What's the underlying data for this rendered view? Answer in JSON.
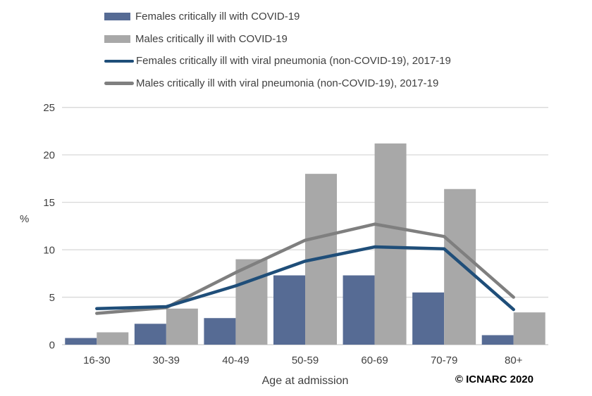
{
  "chart_data": {
    "type": "combo (bar + line)",
    "categories": [
      "16-30",
      "30-39",
      "40-49",
      "50-59",
      "60-69",
      "70-79",
      "80+"
    ],
    "bar_series": [
      {
        "name": "Females critically ill with COVID-19",
        "color": "#566B94",
        "values": [
          0.7,
          2.2,
          2.8,
          7.3,
          7.3,
          5.5,
          1.0
        ]
      },
      {
        "name": "Males critically ill with COVID-19",
        "color": "#A8A8A8",
        "values": [
          1.3,
          3.8,
          9.0,
          18.0,
          21.2,
          16.4,
          3.4
        ]
      }
    ],
    "line_series": [
      {
        "name": "Females critically ill with viral pneumonia (non-COVID-19), 2017-19",
        "color": "#1F4E79",
        "values": [
          3.8,
          4.0,
          6.2,
          8.8,
          10.3,
          10.1,
          3.7
        ]
      },
      {
        "name": "Males critically ill with viral pneumonia (non-COVID-19), 2017-19",
        "color": "#7F7F7F",
        "values": [
          3.3,
          3.9,
          7.6,
          11.0,
          12.7,
          11.4,
          5.0
        ]
      }
    ],
    "title": "",
    "xlabel": "Age at admission",
    "ylabel": "%",
    "ylim": [
      0,
      25
    ],
    "yticks": [
      0,
      5,
      10,
      15,
      20,
      25
    ],
    "grid": true,
    "legend_position": "top-left",
    "copyright": "© ICNARC 2020",
    "colors": {
      "gridline": "#D9D9D9",
      "baseline": "#C9C9C9",
      "axis_text": "#404040",
      "copyright_text": "#000000"
    }
  }
}
